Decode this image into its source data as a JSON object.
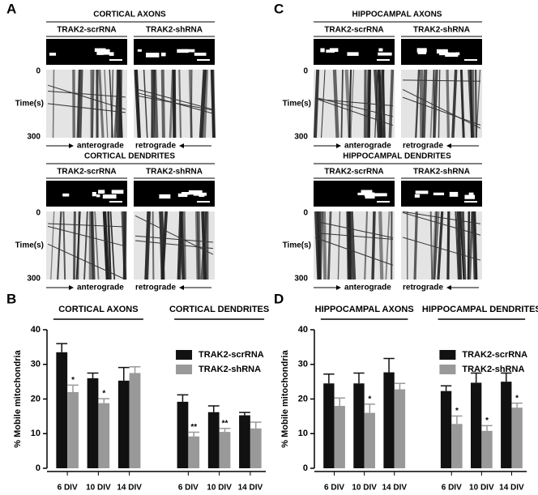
{
  "figure": {
    "panels": [
      {
        "label": "A",
        "sections": [
          {
            "title": "CORTICAL AXONS",
            "columns": [
              "TRAK2-scrRNA",
              "TRAK2-shRNA"
            ],
            "time_label": "Time(s)",
            "time_range": [
              0,
              300
            ],
            "directions": [
              "anterograde",
              "retrograde"
            ]
          },
          {
            "title": "CORTICAL DENDRITES",
            "columns": [
              "TRAK2-scrRNA",
              "TRAK2-shRNA"
            ],
            "time_label": "Time(s)",
            "time_range": [
              0,
              300
            ],
            "directions": [
              "anterograde",
              "retrograde"
            ]
          }
        ]
      },
      {
        "label": "C",
        "sections": [
          {
            "title": "HIPPOCAMPAL AXONS",
            "columns": [
              "TRAK2-scrRNA",
              "TRAK2-shRNA"
            ],
            "time_label": "Time(s)",
            "time_range": [
              0,
              300
            ],
            "directions": [
              "anterograde",
              "retrograde"
            ]
          },
          {
            "title": "HIPPOCAMPAL DENDRITES",
            "columns": [
              "TRAK2-scrRNA",
              "TRAK2-shRNA"
            ],
            "time_label": "Time(s)",
            "time_range": [
              0,
              300
            ],
            "directions": [
              "anterograde",
              "retrograde"
            ]
          }
        ]
      }
    ]
  },
  "chart_data": [
    {
      "type": "bar",
      "label": "B",
      "y_label": "% Mobile mitochondria",
      "group_labels": [
        "CORTICAL AXONS",
        "CORTICAL DENDRITES"
      ],
      "categories": [
        "6 DIV",
        "10 DIV",
        "14 DIV",
        "6 DIV",
        "10 DIV",
        "14 DIV"
      ],
      "series": [
        {
          "name": "TRAK2-scrRNA",
          "color": "#111111",
          "values": [
            33.5,
            26,
            25.3,
            19.2,
            16.2,
            15.3
          ],
          "errors": [
            2.5,
            1.5,
            3.8,
            2,
            1.8,
            0.8
          ]
        },
        {
          "name": "TRAK2-shRNA",
          "color": "#999999",
          "values": [
            22,
            18.8,
            27.5,
            9.2,
            10.5,
            11.5
          ],
          "errors": [
            2,
            1.3,
            1.8,
            1.2,
            1,
            1.8
          ],
          "significance": [
            "*",
            "*",
            null,
            "**",
            "**",
            null
          ]
        }
      ],
      "ylim": [
        0,
        40
      ],
      "yticks": [
        0,
        10,
        20,
        30,
        40
      ],
      "legend": "upper right"
    },
    {
      "type": "bar",
      "label": "D",
      "y_label": "% Mobile mitochondria",
      "group_labels": [
        "HIPPOCAMPAL AXONS",
        "HIPPOCAMPAL DENDRITES"
      ],
      "categories": [
        "6 DIV",
        "10 DIV",
        "14 DIV",
        "6 DIV",
        "10 DIV",
        "14 DIV"
      ],
      "series": [
        {
          "name": "TRAK2-scrRNA",
          "color": "#111111",
          "values": [
            24.5,
            24.5,
            27.7,
            22.3,
            24.7,
            25
          ],
          "errors": [
            2.7,
            3,
            4,
            1.5,
            2.8,
            2.5
          ]
        },
        {
          "name": "TRAK2-shRNA",
          "color": "#999999",
          "values": [
            18,
            16,
            22.8,
            12.8,
            10.8,
            17.5
          ],
          "errors": [
            2.3,
            2.5,
            1.7,
            2.3,
            1.5,
            1.3
          ],
          "significance": [
            null,
            "*",
            null,
            "*",
            "*",
            "*"
          ]
        }
      ],
      "ylim": [
        0,
        40
      ],
      "yticks": [
        0,
        10,
        20,
        30,
        40
      ],
      "legend": "upper right"
    }
  ]
}
